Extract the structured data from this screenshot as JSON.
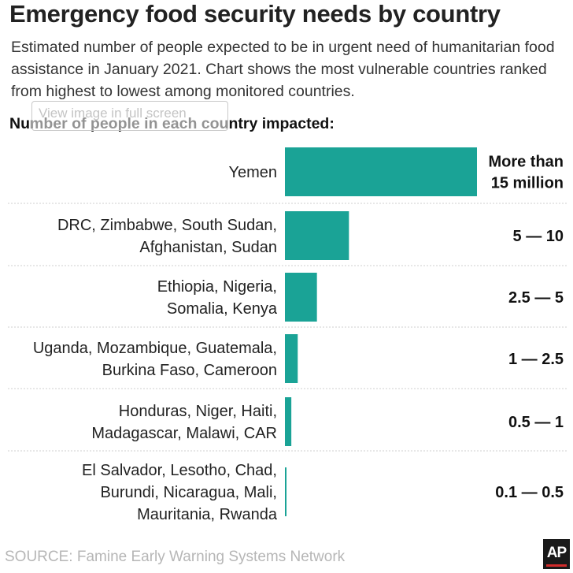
{
  "title": "Emergency food security needs by country",
  "subtitle": "Estimated number of people expected to be in urgent need of humanitarian food assistance in January 2021. Chart shows the most vulnerable countries ranked from highest to lowest among monitored countries.",
  "overlay_text": "View image in full screen",
  "chart_label": "Number of people in each country impacted:",
  "source": "SOURCE:  Famine Early Warning Systems Network",
  "logo_text": "AP",
  "colors": {
    "bar": "#1aa396",
    "divider": "#cfcfcf",
    "logo_accent": "#d12b2b"
  },
  "chart_data": {
    "type": "bar",
    "orientation": "horizontal",
    "title": "Emergency food security needs by country",
    "ylabel": "Number of people in each country impacted:",
    "rows": [
      {
        "countries": [
          "Yemen"
        ],
        "range": [
          "More than",
          "15 million"
        ],
        "value": 15
      },
      {
        "countries": [
          "DRC, Zimbabwe, South Sudan,",
          "Afghanistan, Sudan"
        ],
        "range": [
          "5 — 10"
        ],
        "value": 5
      },
      {
        "countries": [
          "Ethiopia, Nigeria,",
          "Somalia, Kenya"
        ],
        "range": [
          "2.5 — 5"
        ],
        "value": 2.5
      },
      {
        "countries": [
          "Uganda, Mozambique, Guatemala,",
          "Burkina Faso, Cameroon"
        ],
        "range": [
          "1 — 2.5"
        ],
        "value": 1
      },
      {
        "countries": [
          "Honduras, Niger, Haiti,",
          "Madagascar, Malawi, CAR"
        ],
        "range": [
          "0.5 — 1"
        ],
        "value": 0.5
      },
      {
        "countries": [
          "El Salvador, Lesotho, Chad,",
          "Burundi, Nicaragua, Mali,",
          "Mauritania, Rwanda"
        ],
        "range": [
          "0.1 — 0.5"
        ],
        "value": 0.1
      }
    ]
  }
}
